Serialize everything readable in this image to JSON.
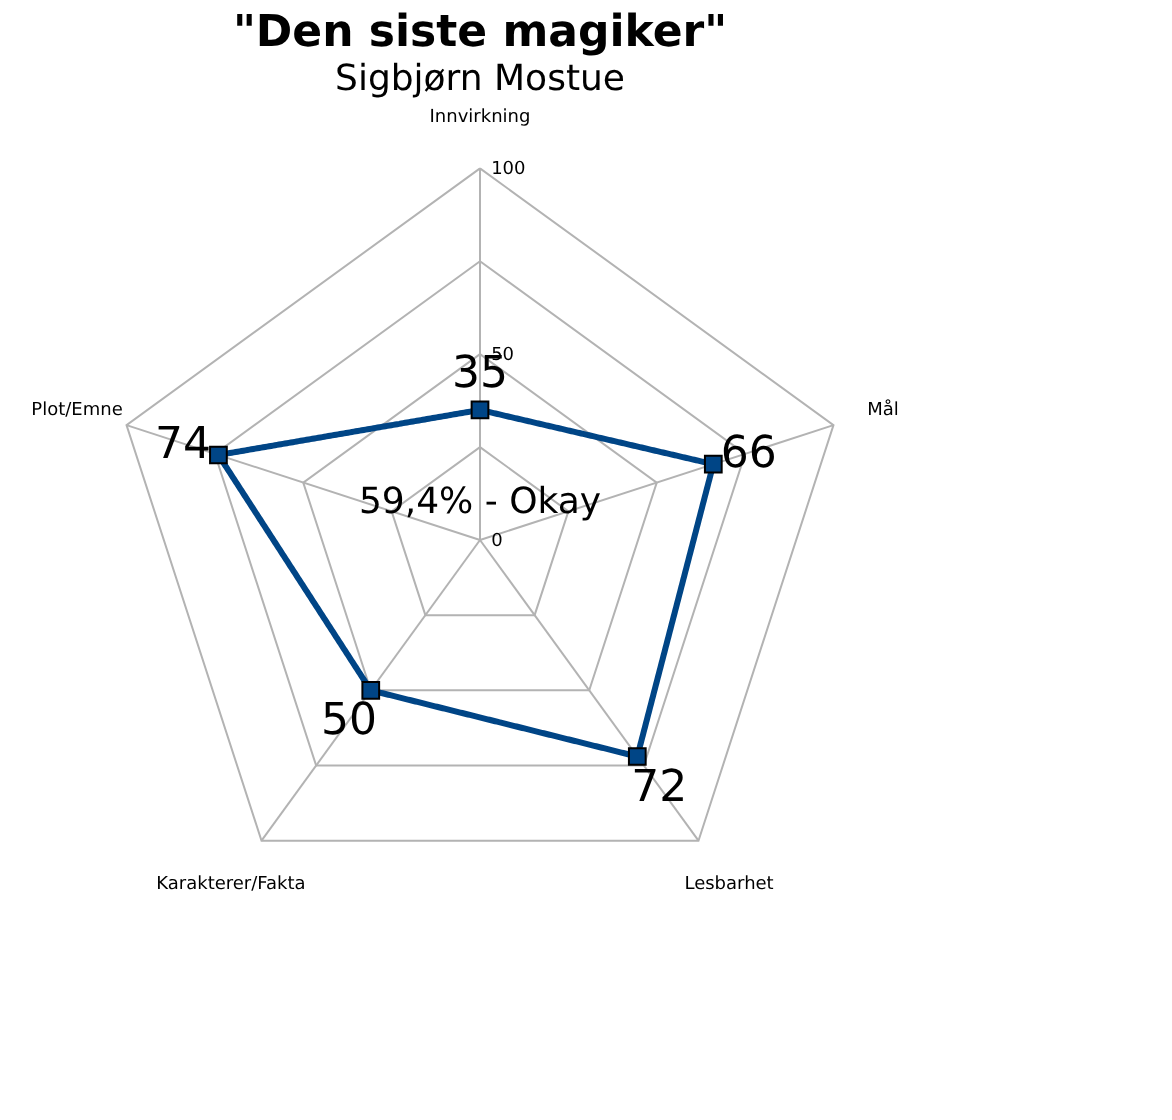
{
  "chart_data": {
    "type": "radar",
    "title": "\"Den siste magiker\"",
    "subtitle": "Sigbjørn Mostue",
    "categories": [
      "Innvirkning",
      "Mål",
      "Lesbarhet",
      "Karakterer/Fakta",
      "Plot/Emne"
    ],
    "series": [
      {
        "color": "#004586",
        "values": [
          35,
          66,
          72,
          50,
          74
        ]
      }
    ],
    "ylim": [
      0,
      100
    ],
    "yticks": [
      0,
      50,
      100
    ],
    "grid": true,
    "marker": "square",
    "line_style": "solid",
    "data_labels": true,
    "annotations": [
      "59,4% - Okay"
    ]
  }
}
